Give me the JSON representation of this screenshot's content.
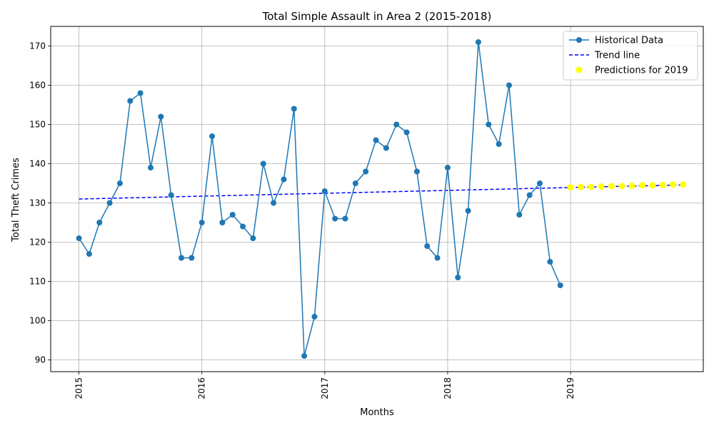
{
  "chart_data": {
    "type": "line",
    "title": "Total Simple Assault in Area 2 (2015-2018)",
    "xlabel": "Months",
    "ylabel": "Total Theft Crimes",
    "ylim": [
      87,
      175
    ],
    "yticks": [
      90,
      100,
      110,
      120,
      130,
      140,
      150,
      160,
      170
    ],
    "xlim": [
      2014.77,
      2020.08
    ],
    "xticks": [
      2015,
      2016,
      2017,
      2018,
      2019
    ],
    "xtick_labels": [
      "2015",
      "2016",
      "2017",
      "2018",
      "2019"
    ],
    "grid": true,
    "legend_position": "top-right",
    "colors": {
      "historical": "#1f77b4",
      "trend": "#0000ff",
      "predictions": "#ffff00"
    },
    "series": [
      {
        "name": "Historical Data",
        "style": "line-marker",
        "x_start": 2015,
        "x_step": 0.08333,
        "values": [
          121,
          117,
          125,
          130,
          135,
          156,
          158,
          139,
          152,
          132,
          116,
          116,
          125,
          147,
          125,
          127,
          124,
          121,
          140,
          130,
          136,
          154,
          91,
          101,
          133,
          126,
          126,
          135,
          138,
          146,
          144,
          150,
          148,
          138,
          119,
          116,
          139,
          111,
          128,
          171,
          150,
          145,
          160,
          127,
          132,
          135,
          115,
          109
        ]
      },
      {
        "name": "Trend line",
        "style": "dashed",
        "x": [
          2015,
          2019.9167
        ],
        "values": [
          131.0,
          134.6
        ]
      },
      {
        "name": "Predictions for 2019",
        "style": "scatter",
        "x_start": 2019,
        "x_step": 0.08333,
        "values": [
          134.0,
          134.1,
          134.1,
          134.2,
          134.3,
          134.3,
          134.4,
          134.5,
          134.5,
          134.6,
          134.7,
          134.7
        ]
      }
    ]
  }
}
